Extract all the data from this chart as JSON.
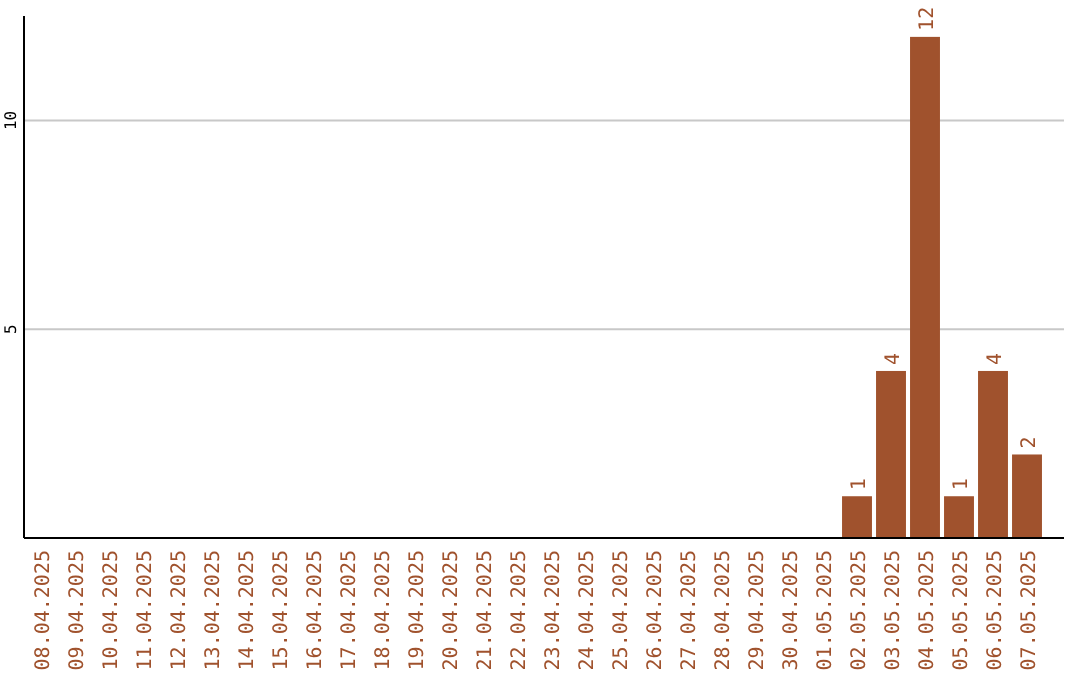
{
  "chart_data": {
    "type": "bar",
    "categories": [
      "08.04.2025",
      "09.04.2025",
      "10.04.2025",
      "11.04.2025",
      "12.04.2025",
      "13.04.2025",
      "14.04.2025",
      "15.04.2025",
      "16.04.2025",
      "17.04.2025",
      "18.04.2025",
      "19.04.2025",
      "20.04.2025",
      "21.04.2025",
      "22.04.2025",
      "23.04.2025",
      "24.04.2025",
      "25.04.2025",
      "26.04.2025",
      "27.04.2025",
      "28.04.2025",
      "29.04.2025",
      "30.04.2025",
      "01.05.2025",
      "02.05.2025",
      "03.05.2025",
      "04.05.2025",
      "05.05.2025",
      "06.05.2025",
      "07.05.2025"
    ],
    "values": [
      0,
      0,
      0,
      0,
      0,
      0,
      0,
      0,
      0,
      0,
      0,
      0,
      0,
      0,
      0,
      0,
      0,
      0,
      0,
      0,
      0,
      0,
      0,
      0,
      1,
      4,
      12,
      1,
      4,
      2
    ],
    "value_labels": [
      null,
      null,
      null,
      null,
      null,
      null,
      null,
      null,
      null,
      null,
      null,
      null,
      null,
      null,
      null,
      null,
      null,
      null,
      null,
      null,
      null,
      null,
      null,
      null,
      "1",
      "4",
      "12",
      "1",
      "4",
      "2"
    ],
    "color": "#a0522d",
    "ylim": [
      0,
      12.5
    ],
    "yticks": [
      5,
      10
    ],
    "grid": "y"
  }
}
